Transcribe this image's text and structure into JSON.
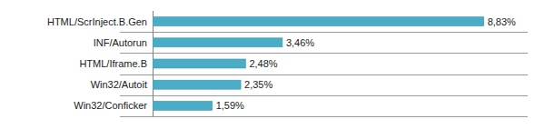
{
  "chart_data": {
    "type": "bar",
    "orientation": "horizontal",
    "categories": [
      "HTML/ScrInject.B.Gen",
      "INF/Autorun",
      "HTML/Iframe.B",
      "Win32/Autoit",
      "Win32/Conficker"
    ],
    "values": [
      8.83,
      3.46,
      2.48,
      2.35,
      1.59
    ],
    "value_labels": [
      "8,83%",
      "3,46%",
      "2,48%",
      "2,35%",
      "1,59%"
    ],
    "color": "#4bacc6",
    "xlim": [
      0,
      10
    ],
    "data_labels": true,
    "tick_labels": "y"
  }
}
